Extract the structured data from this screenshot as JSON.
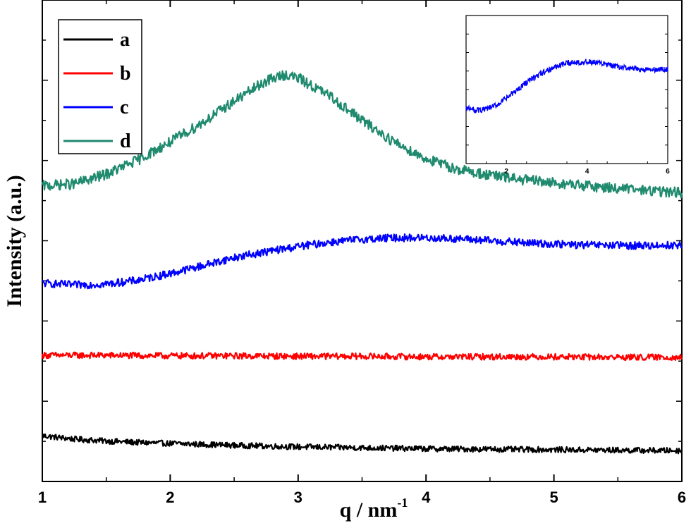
{
  "chart_data": {
    "type": "line",
    "xlabel": "q / nm",
    "xlabel_superscript": "-1",
    "ylabel": "Intensity (a.u.)",
    "xlim": [
      1,
      6
    ],
    "ylim": [
      0,
      1
    ],
    "x_ticks": [
      "1",
      "2",
      "3",
      "4",
      "5",
      "6"
    ],
    "y_ticks_labeled": false,
    "grid": false,
    "legend_position": "top-left",
    "series": [
      {
        "name": "a",
        "color": "#000000",
        "x": [
          1.0,
          1.25,
          1.5,
          1.75,
          2.0,
          2.5,
          3.0,
          3.5,
          4.0,
          4.5,
          5.0,
          5.5,
          6.0
        ],
        "y": [
          0.095,
          0.088,
          0.084,
          0.081,
          0.079,
          0.075,
          0.072,
          0.07,
          0.068,
          0.067,
          0.066,
          0.065,
          0.064
        ]
      },
      {
        "name": "b",
        "color": "#ff0000",
        "x": [
          1.0,
          1.5,
          2.0,
          2.5,
          3.0,
          3.5,
          4.0,
          4.5,
          5.0,
          5.5,
          6.0
        ],
        "y": [
          0.262,
          0.262,
          0.261,
          0.261,
          0.26,
          0.26,
          0.259,
          0.259,
          0.259,
          0.258,
          0.258
        ]
      },
      {
        "name": "c",
        "color": "#0000ff",
        "x": [
          1.0,
          1.25,
          1.5,
          1.75,
          2.0,
          2.25,
          2.5,
          2.75,
          3.0,
          3.25,
          3.5,
          3.75,
          4.0,
          4.25,
          4.5,
          4.75,
          5.0,
          5.25,
          5.5,
          5.75,
          6.0
        ],
        "y": [
          0.412,
          0.408,
          0.41,
          0.418,
          0.432,
          0.448,
          0.465,
          0.477,
          0.488,
          0.497,
          0.503,
          0.506,
          0.506,
          0.504,
          0.5,
          0.496,
          0.493,
          0.491,
          0.49,
          0.49,
          0.491
        ]
      },
      {
        "name": "d",
        "color": "#1f8a6e",
        "x": [
          1.0,
          1.25,
          1.5,
          1.75,
          2.0,
          2.25,
          2.5,
          2.75,
          2.9,
          3.0,
          3.25,
          3.5,
          3.75,
          4.0,
          4.25,
          4.5,
          4.75,
          5.0,
          5.25,
          5.5,
          5.75,
          6.0
        ],
        "y": [
          0.614,
          0.618,
          0.638,
          0.668,
          0.705,
          0.745,
          0.79,
          0.832,
          0.845,
          0.838,
          0.8,
          0.75,
          0.705,
          0.67,
          0.648,
          0.636,
          0.627,
          0.62,
          0.614,
          0.609,
          0.604,
          0.6
        ]
      }
    ],
    "inset": {
      "series_name": "c",
      "color": "#0000ff",
      "xlim": [
        1,
        6
      ],
      "x_ticks": [
        "2",
        "4",
        "6"
      ],
      "x": [
        1.0,
        1.25,
        1.5,
        1.75,
        2.0,
        2.25,
        2.5,
        2.75,
        3.0,
        3.25,
        3.5,
        3.75,
        4.0,
        4.25,
        4.5,
        4.75,
        5.0,
        5.25,
        5.5,
        5.75,
        6.0
      ],
      "y": [
        0.412,
        0.408,
        0.41,
        0.418,
        0.432,
        0.448,
        0.465,
        0.477,
        0.488,
        0.497,
        0.503,
        0.506,
        0.506,
        0.504,
        0.5,
        0.496,
        0.493,
        0.491,
        0.49,
        0.49,
        0.491
      ]
    }
  }
}
